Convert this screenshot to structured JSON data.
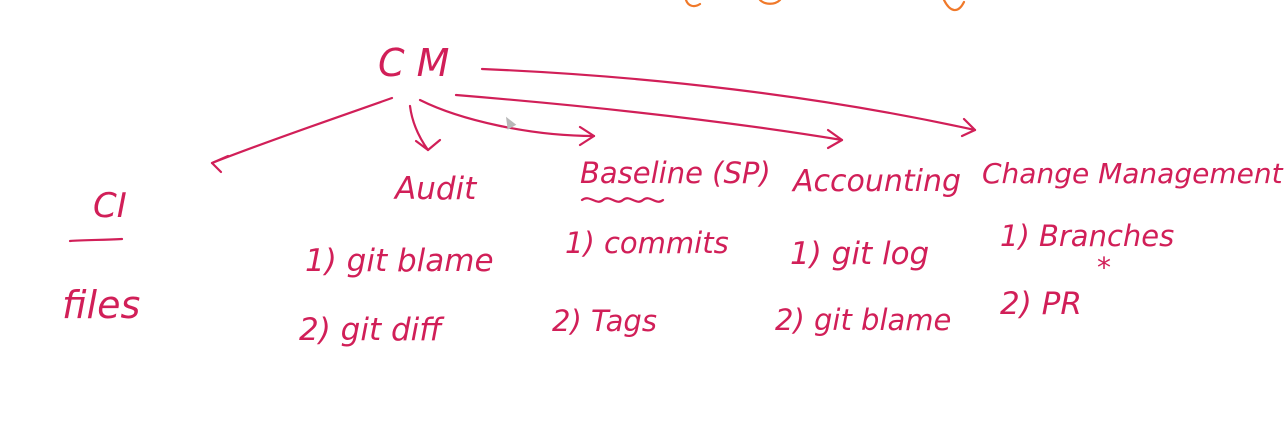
{
  "colors": {
    "ink": "#d11f58",
    "accent_orange": "#f0792a",
    "background": "#ffffff"
  },
  "root": {
    "label": "C M"
  },
  "branches": [
    {
      "id": "ci",
      "title": "CI",
      "items": [
        "files"
      ]
    },
    {
      "id": "audit",
      "title": "Audit",
      "items": [
        "1) git blame",
        "2) git diff"
      ]
    },
    {
      "id": "baseline",
      "title": "Baseline (SP)",
      "items": [
        "1) commits",
        "2) Tags"
      ]
    },
    {
      "id": "accounting",
      "title": "Accounting",
      "items": [
        "1) git log",
        "2) git blame"
      ]
    },
    {
      "id": "change-management",
      "title": "Change Management",
      "items": [
        "1) Branches",
        "2) PR"
      ],
      "mark": "*"
    }
  ]
}
